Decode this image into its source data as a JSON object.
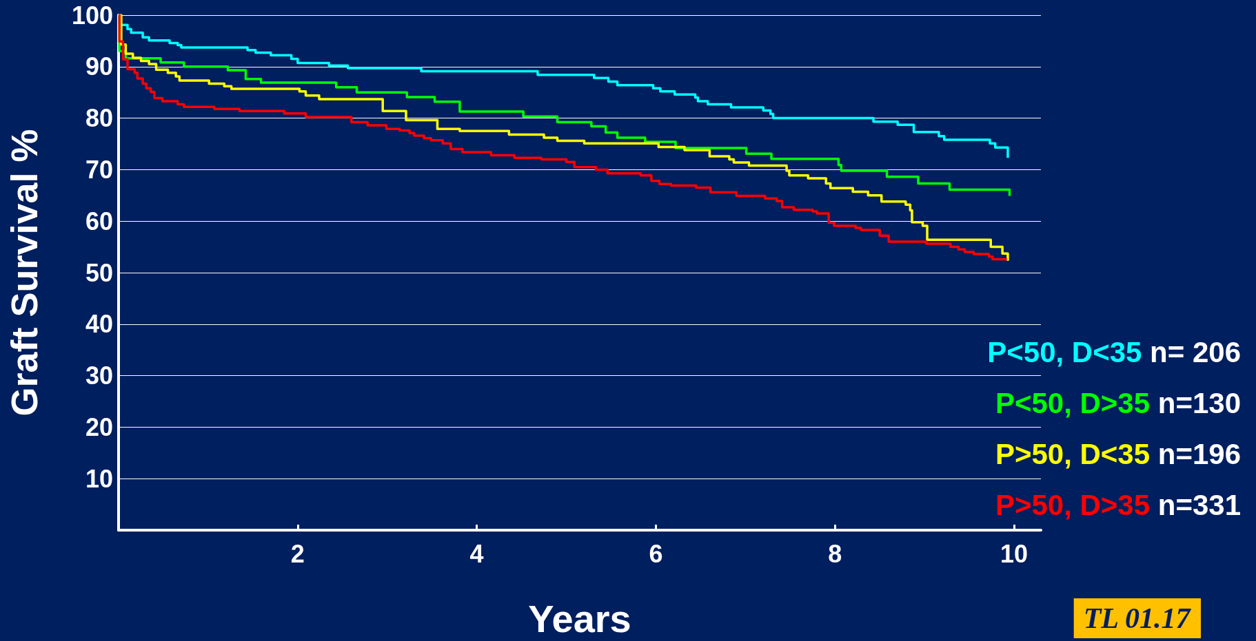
{
  "chart_data": {
    "type": "step",
    "xlabel": "Years",
    "ylabel": "Graft Survival %",
    "xlim": [
      0,
      10.3
    ],
    "xticks": [
      2,
      4,
      6,
      8,
      10
    ],
    "ylim": [
      0,
      100
    ],
    "yticks": [
      10,
      20,
      30,
      40,
      50,
      60,
      70,
      80,
      90,
      100
    ],
    "grid": "y",
    "legend": "bottom right",
    "marker": "none",
    "line_style": "solid",
    "annotations": [
      "n= 206",
      "n=130",
      "n=196",
      "n=331",
      "TL 01.17"
    ],
    "series": [
      {
        "name": "P<50, D<35",
        "color": "#00ffff",
        "x": [
          0,
          0.01,
          0.1,
          0.14,
          0.27,
          0.34,
          0.57,
          0.66,
          0.7,
          1.44,
          1.53,
          1.7,
          1.93,
          2.0,
          2.35,
          2.56,
          3.38,
          4.68,
          5.31,
          5.47,
          5.57,
          5.97,
          6.05,
          6.21,
          6.44,
          6.47,
          6.58,
          6.84,
          7.2,
          7.28,
          7.31,
          8.43,
          8.7,
          8.88,
          9.16,
          9.22,
          9.73,
          9.79,
          9.92,
          9.93
        ],
        "values": [
          100,
          98.1,
          97.3,
          96.6,
          95.7,
          95.1,
          94.6,
          94.2,
          93.7,
          93.2,
          92.7,
          92.2,
          91.5,
          90.7,
          90.2,
          89.7,
          89.1,
          88.4,
          87.8,
          87.1,
          86.4,
          85.8,
          85.2,
          84.6,
          84.0,
          83.3,
          82.7,
          82.1,
          81.5,
          80.8,
          80.0,
          79.3,
          78.7,
          77.3,
          76.5,
          75.8,
          75.1,
          74.3,
          74.3,
          72.3
        ]
      },
      {
        "name": "P<50, D>35",
        "color": "#00ff00",
        "x": [
          0,
          0.01,
          0.08,
          0.47,
          0.73,
          1.22,
          1.42,
          1.59,
          2.43,
          2.66,
          3.22,
          3.53,
          3.81,
          4.52,
          4.9,
          5.28,
          5.44,
          5.57,
          5.88,
          6.22,
          7.01,
          7.29,
          8.04,
          8.07,
          8.58,
          8.93,
          9.28,
          9.94,
          9.95
        ],
        "values": [
          100,
          93.0,
          91.6,
          90.8,
          90.0,
          89.3,
          87.6,
          86.9,
          86.0,
          85.0,
          84.1,
          83.2,
          81.3,
          80.3,
          79.2,
          78.4,
          77.2,
          76.2,
          75.4,
          74.2,
          73.1,
          72.1,
          70.9,
          69.8,
          68.6,
          67.3,
          66.1,
          66.1,
          64.9
        ]
      },
      {
        "name": "P>50, D<35",
        "color": "#ffff00",
        "x": [
          0,
          0.03,
          0.08,
          0.16,
          0.25,
          0.34,
          0.42,
          0.55,
          0.64,
          0.68,
          1.01,
          1.18,
          1.26,
          2.02,
          2.09,
          2.24,
          2.95,
          3.21,
          3.56,
          3.81,
          4.36,
          4.75,
          4.9,
          5.2,
          6.03,
          6.32,
          6.6,
          6.82,
          6.87,
          7.04,
          7.46,
          7.49,
          7.7,
          7.9,
          7.95,
          8.2,
          8.37,
          8.52,
          8.79,
          8.84,
          8.86,
          8.98,
          9.03,
          9.74,
          9.87,
          9.93
        ],
        "values": [
          100,
          94.3,
          92.5,
          91.7,
          91.1,
          90.5,
          89.4,
          88.8,
          88.1,
          87.3,
          86.7,
          86.2,
          85.7,
          85.2,
          84.4,
          83.7,
          81.4,
          79.6,
          77.9,
          77.5,
          76.8,
          76.2,
          75.6,
          75.1,
          74.4,
          73.8,
          72.6,
          72.0,
          71.4,
          70.8,
          69.8,
          68.9,
          68.3,
          67.3,
          66.4,
          65.7,
          65.0,
          63.8,
          63.2,
          62.1,
          59.8,
          59.1,
          56.4,
          55.0,
          53.7,
          52.3
        ]
      },
      {
        "name": "P>50, D>35",
        "color": "#ff0000",
        "x": [
          0,
          0.01,
          0.05,
          0.1,
          0.18,
          0.21,
          0.27,
          0.31,
          0.36,
          0.4,
          0.49,
          0.66,
          0.73,
          1.07,
          1.35,
          1.85,
          2.09,
          2.6,
          2.78,
          2.99,
          3.14,
          3.25,
          3.3,
          3.41,
          3.49,
          3.62,
          3.71,
          3.84,
          4.16,
          4.42,
          4.72,
          5.0,
          5.09,
          5.33,
          5.46,
          5.83,
          5.95,
          6.04,
          6.17,
          6.45,
          6.61,
          6.9,
          7.22,
          7.35,
          7.41,
          7.54,
          7.75,
          7.8,
          7.93,
          7.99,
          8.23,
          8.29,
          8.5,
          8.6,
          9.02,
          9.29,
          9.38,
          9.45,
          9.55,
          9.72,
          9.76,
          9.92
        ],
        "values": [
          100,
          94.9,
          91.4,
          89.5,
          88.8,
          87.7,
          86.7,
          85.8,
          85.1,
          83.9,
          83.3,
          82.7,
          82.2,
          81.8,
          81.4,
          80.9,
          80.2,
          79.2,
          78.6,
          77.9,
          77.6,
          77.1,
          76.6,
          76.1,
          75.7,
          75.1,
          74.0,
          73.4,
          72.8,
          72.3,
          72.0,
          71.5,
          70.5,
          70.0,
          69.3,
          68.9,
          67.8,
          67.2,
          66.9,
          66.5,
          65.6,
          64.9,
          64.4,
          63.9,
          62.7,
          62.2,
          61.9,
          61.5,
          59.7,
          59.1,
          58.7,
          58.3,
          57.2,
          56.0,
          55.6,
          55.0,
          54.5,
          54.0,
          53.6,
          53.1,
          52.6,
          52.6
        ]
      }
    ]
  }
}
